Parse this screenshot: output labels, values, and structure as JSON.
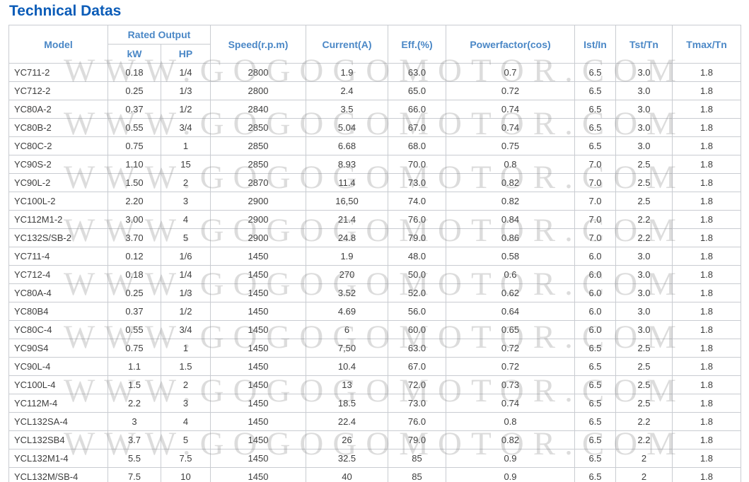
{
  "page": {
    "title": "Technical Datas"
  },
  "watermark": {
    "text": "WWW.GOGOGOMOTOR.COM",
    "repeat_lines": 8
  },
  "colors": {
    "title_blue": "#0b5cb8",
    "header_blue": "#4a87c6",
    "border_gray": "#c9ccd1",
    "cell_text": "#3d3d3d",
    "watermark_gray": "#d6d6d6"
  },
  "table": {
    "header": {
      "model": "Model",
      "rated_output": "Rated Output",
      "kw": "kW",
      "hp": "HP",
      "speed": "Speed(r.p.m)",
      "current": "Current(A)",
      "eff": "Eff.(%)",
      "powerfactor": "Powerfactor(cos)",
      "ist_in": "Ist/In",
      "tst_tn": "Tst/Tn",
      "tmax_tn": "Tmax/Tn"
    },
    "rows": [
      [
        "YC711-2",
        "0.18",
        "1/4",
        "2800",
        "1.9",
        "63.0",
        "0.7",
        "6.5",
        "3.0",
        "1.8"
      ],
      [
        "YC712-2",
        "0.25",
        "1/3",
        "2800",
        "2.4",
        "65.0",
        "0.72",
        "6.5",
        "3.0",
        "1.8"
      ],
      [
        "YC80A-2",
        "0.37",
        "1/2",
        "2840",
        "3.5",
        "66.0",
        "0.74",
        "6.5",
        "3.0",
        "1.8"
      ],
      [
        "YC80B-2",
        "0.55",
        "3/4",
        "2850",
        "5.04",
        "67.0",
        "0.74",
        "6.5",
        "3.0",
        "1.8"
      ],
      [
        "YC80C-2",
        "0.75",
        "1",
        "2850",
        "6.68",
        "68.0",
        "0.75",
        "6.5",
        "3.0",
        "1.8"
      ],
      [
        "YC90S-2",
        "1.10",
        "15",
        "2850",
        "8.93",
        "70.0",
        "0.8",
        "7.0",
        "2.5",
        "1.8"
      ],
      [
        "YC90L-2",
        "1.50",
        "2",
        "2870",
        "11.4",
        "73.0",
        "0.82",
        "7.0",
        "2.5",
        "1.8"
      ],
      [
        "YC100L-2",
        "2.20",
        "3",
        "2900",
        "16,50",
        "74.0",
        "0.82",
        "7.0",
        "2.5",
        "1.8"
      ],
      [
        "YC112M1-2",
        "3.00",
        "4",
        "2900",
        "21.4",
        "76.0",
        "0.84",
        "7.0",
        "2.2",
        "1.8"
      ],
      [
        "YC132S/SB-2",
        "3.70",
        "5",
        "2900",
        "24.8",
        "79.0",
        "0.86",
        "7.0",
        "2.2",
        "1.8"
      ],
      [
        "YC711-4",
        "0.12",
        "1/6",
        "1450",
        "1.9",
        "48.0",
        "0.58",
        "6.0",
        "3.0",
        "1.8"
      ],
      [
        "YC712-4",
        "0.18",
        "1/4",
        "1450",
        "270",
        "50.0",
        "0.6",
        "6.0",
        "3.0",
        "1.8"
      ],
      [
        "YC80A-4",
        "0.25",
        "1/3",
        "1450",
        "3.52",
        "52.0",
        "0.62",
        "6.0",
        "3.0",
        "1.8"
      ],
      [
        "YC80B4",
        "0.37",
        "1/2",
        "1450",
        "4.69",
        "56.0",
        "0.64",
        "6.0",
        "3.0",
        "1.8"
      ],
      [
        "YC80C-4",
        "0.55",
        "3/4",
        "1450",
        "6",
        "60.0",
        "0.65",
        "6.0",
        "3.0",
        "1.8"
      ],
      [
        "YC90S4",
        "0.75",
        "1",
        "1450",
        "7,50",
        "63.0",
        "0.72",
        "6.5",
        "2.5",
        "1.8"
      ],
      [
        "YC90L-4",
        "1.1",
        "1.5",
        "1450",
        "10.4",
        "67.0",
        "0.72",
        "6.5",
        "2.5",
        "1.8"
      ],
      [
        "YC100L-4",
        "1.5",
        "2",
        "1450",
        "13",
        "72.0",
        "0.73",
        "6.5",
        "2.5",
        "1.8"
      ],
      [
        "YC112M-4",
        "2.2",
        "3",
        "1450",
        "18.5",
        "73.0",
        "0.74",
        "6.5",
        "2.5",
        "1.8"
      ],
      [
        "YCL132SA-4",
        "3",
        "4",
        "1450",
        "22.4",
        "76.0",
        "0.8",
        "6.5",
        "2.2",
        "1.8"
      ],
      [
        "YCL132SB4",
        "3.7",
        "5",
        "1450",
        "26",
        "79.0",
        "0.82",
        "6.5",
        "2.2",
        "1.8"
      ],
      [
        "YCL132M1-4",
        "5.5",
        "7.5",
        "1450",
        "32.5",
        "85",
        "0.9",
        "6.5",
        "2",
        "1.8"
      ],
      [
        "YCL132M/SB-4",
        "7.5",
        "10",
        "1450",
        "40",
        "85",
        "0.9",
        "6.5",
        "2",
        "1.8"
      ]
    ]
  }
}
